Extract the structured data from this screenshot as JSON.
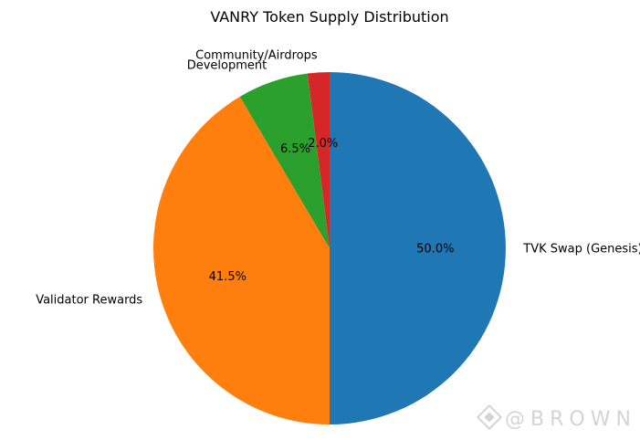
{
  "chart_data": {
    "type": "pie",
    "title": "VANRY Token Supply Distribution",
    "start_angle_deg": 90,
    "direction": "clockwise",
    "slices": [
      {
        "label": "TVK Swap (Genesis)",
        "value": 50.0,
        "pct_label": "50.0%",
        "color": "#1f77b4"
      },
      {
        "label": "Validator Rewards",
        "value": 41.5,
        "pct_label": "41.5%",
        "color": "#ff7f0e"
      },
      {
        "label": "Development",
        "value": 6.5,
        "pct_label": "6.5%",
        "color": "#2ca02c"
      },
      {
        "label": "Community/Airdrops",
        "value": 2.0,
        "pct_label": "2.0%",
        "color": "#d62728"
      }
    ]
  },
  "watermark": {
    "text": "@BROWN",
    "icon": "binance-diamond-icon"
  }
}
